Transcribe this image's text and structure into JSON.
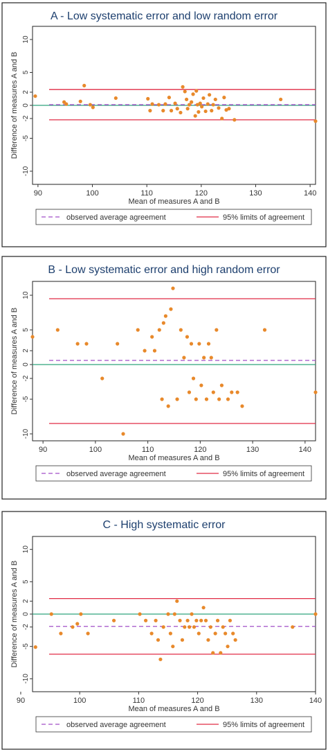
{
  "colors": {
    "panel_frame": "#222222",
    "plot_bg": "#ffffff",
    "title": "#1d3f6e",
    "text": "#333333",
    "points": "#e8892b",
    "limits": "#e02b45",
    "average": "#a04ec8",
    "zero": "#2ea37c"
  },
  "chart_data": [
    {
      "type": "scatter",
      "title": "A - Low systematic error and low random error",
      "xlabel": "Mean of measures A and B",
      "ylabel": "Difference of measures A and B",
      "xlim": [
        89,
        141
      ],
      "ylim": [
        -12,
        12
      ],
      "xticks": [
        90,
        100,
        110,
        120,
        130,
        140
      ],
      "yticks": [
        -10,
        -5,
        -2,
        0,
        2,
        5,
        10
      ],
      "grid": false,
      "legend_position": "bottom",
      "mean_diff": 0.1,
      "limits_of_agreement": [
        -2.2,
        2.4
      ],
      "legend": [
        "observed average agreement",
        "95% limits of agreement"
      ],
      "x": [
        89.5,
        94.8,
        95.2,
        97.8,
        98.5,
        99.6,
        100.1,
        104.3,
        110.2,
        110.6,
        111.0,
        112.2,
        113.0,
        113.4,
        114.1,
        114.5,
        115.2,
        115.6,
        116.2,
        116.6,
        117.0,
        117.3,
        117.5,
        117.8,
        118.2,
        118.5,
        118.9,
        119.1,
        119.3,
        119.5,
        119.8,
        120.1,
        120.4,
        120.8,
        121.2,
        121.5,
        121.9,
        122.2,
        122.6,
        123.2,
        123.8,
        124.2,
        124.6,
        125.1,
        126.1,
        134.6,
        141.0
      ],
      "y": [
        1.4,
        0.5,
        0.2,
        0.6,
        3.0,
        0.1,
        -0.3,
        1.1,
        1.0,
        -0.8,
        0.2,
        0.1,
        -0.8,
        0.2,
        1.2,
        -0.8,
        0.3,
        -0.5,
        -1.1,
        2.8,
        2.1,
        0.9,
        -0.5,
        0.1,
        0.5,
        1.7,
        -1.6,
        2.2,
        0.1,
        -1.0,
        0.3,
        -0.2,
        1.1,
        -0.9,
        0.2,
        1.6,
        -0.8,
        0.1,
        0.9,
        -0.4,
        -2.0,
        1.2,
        -0.7,
        -0.5,
        -2.2,
        0.9,
        -2.4
      ]
    },
    {
      "type": "scatter",
      "title": "B - Low systematic error and high random error",
      "xlabel": "Mean of measures A and B",
      "ylabel": "Difference of measures A and B",
      "xlim": [
        88,
        142
      ],
      "ylim": [
        -11,
        12
      ],
      "xticks": [
        90,
        100,
        110,
        120,
        130,
        140
      ],
      "yticks": [
        -10,
        -5,
        -2,
        0,
        2,
        5,
        10
      ],
      "grid": false,
      "legend_position": "bottom",
      "mean_diff": 0.6,
      "limits_of_agreement": [
        -8.5,
        9.5
      ],
      "legend": [
        "observed average agreement",
        "95% limits of agreement"
      ],
      "x": [
        88.0,
        92.8,
        96.6,
        98.3,
        101.3,
        104.2,
        105.3,
        108.1,
        109.4,
        110.8,
        111.3,
        112.2,
        112.7,
        113.0,
        113.4,
        113.9,
        114.4,
        114.8,
        115.6,
        116.3,
        116.9,
        117.5,
        117.9,
        118.3,
        118.7,
        119.2,
        119.8,
        120.2,
        120.7,
        121.2,
        121.6,
        122.1,
        122.5,
        123.1,
        123.6,
        124.1,
        125.3,
        126.0,
        127.1,
        128.0,
        132.3,
        142.0
      ],
      "y": [
        4.0,
        5.0,
        3.0,
        3.0,
        -2.0,
        3.0,
        -10.0,
        5.0,
        2.0,
        4.0,
        2.0,
        5.0,
        -5.0,
        6.0,
        7.0,
        -6.0,
        8.0,
        11.0,
        -5.0,
        5.0,
        1.0,
        4.0,
        -4.0,
        3.0,
        -2.0,
        -5.0,
        3.0,
        -3.0,
        1.0,
        -5.0,
        3.0,
        1.0,
        -4.0,
        5.0,
        -5.0,
        -3.0,
        -5.0,
        -4.0,
        -4.0,
        -6.0,
        5.0,
        -4.0
      ]
    },
    {
      "type": "scatter",
      "title": "C - High systematic error",
      "xlabel": "Mean of measures A and B",
      "ylabel": "Difference of measures A and B",
      "xlim": [
        92,
        140
      ],
      "ylim": [
        -12,
        12
      ],
      "xticks": [
        90,
        100,
        110,
        120,
        130,
        140
      ],
      "yticks": [
        -10,
        -5,
        -2,
        0,
        2,
        5,
        10
      ],
      "grid": false,
      "legend_position": "bottom",
      "mean_diff": -1.9,
      "limits_of_agreement": [
        -6.2,
        2.4
      ],
      "legend": [
        "observed average agreement",
        "95% limits of agreement"
      ],
      "x": [
        92.5,
        95.2,
        96.8,
        98.8,
        99.6,
        100.2,
        101.4,
        105.8,
        110.2,
        111.2,
        112.2,
        112.9,
        113.3,
        113.7,
        114.2,
        115.0,
        115.4,
        115.8,
        116.1,
        116.5,
        117.0,
        117.4,
        117.8,
        118.3,
        118.6,
        119.0,
        119.4,
        119.8,
        120.2,
        120.6,
        121.0,
        121.4,
        121.8,
        122.2,
        122.6,
        123.0,
        123.4,
        123.9,
        124.3,
        124.7,
        125.1,
        125.5,
        126.0,
        126.4,
        136.1,
        140.0
      ],
      "y": [
        -5.1,
        0.0,
        -3.0,
        -2.0,
        -1.5,
        0.0,
        -3.0,
        -1.0,
        0.0,
        -1.0,
        -3.0,
        -1.0,
        -4.0,
        -7.0,
        -2.0,
        0.0,
        -3.0,
        -5.0,
        0.0,
        2.0,
        -1.0,
        -4.0,
        -2.0,
        -1.0,
        -2.0,
        0.0,
        -2.0,
        -1.0,
        -3.0,
        -1.0,
        1.0,
        -1.0,
        -4.0,
        -2.0,
        -6.0,
        -3.0,
        -1.0,
        -6.0,
        -2.0,
        -3.0,
        -5.0,
        -1.0,
        -3.0,
        -4.0,
        -2.0,
        0.0
      ]
    }
  ]
}
